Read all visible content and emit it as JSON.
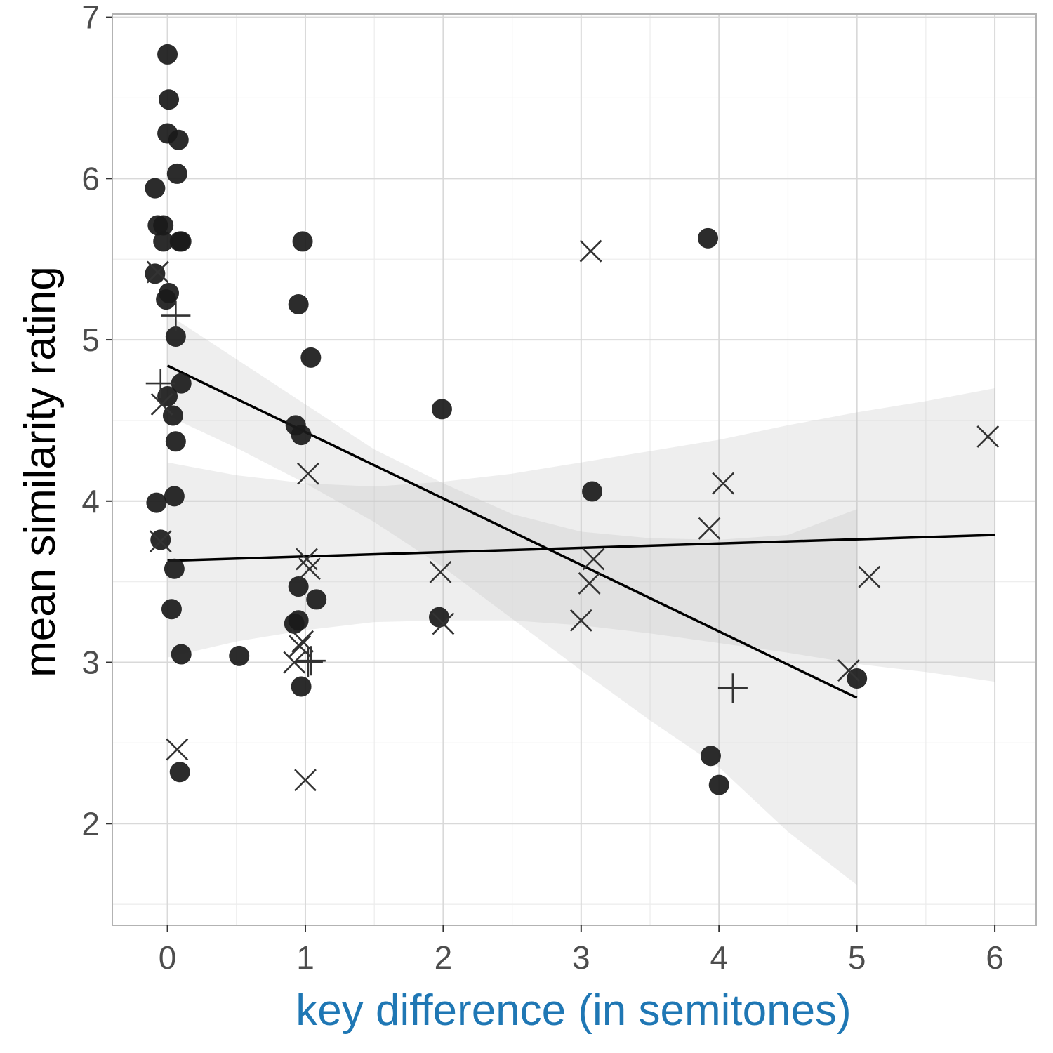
{
  "chart_data": {
    "type": "scatter",
    "xlabel": "key difference (in semitones)",
    "ylabel": "mean similarity rating",
    "xlim": [
      -0.4,
      6.3
    ],
    "ylim": [
      1.37,
      7.02
    ],
    "x_ticks": [
      0,
      1,
      2,
      3,
      4,
      5,
      6
    ],
    "x_tick_labels": [
      "0",
      "1",
      "2",
      "3",
      "4",
      "5",
      "6"
    ],
    "y_ticks": [
      2,
      3,
      4,
      5,
      6,
      7
    ],
    "y_tick_labels": [
      "2",
      "3",
      "4",
      "5",
      "6",
      "7"
    ],
    "grid": true,
    "colors": {
      "xlabel": "#1f77b4",
      "points": "#1a1a1a",
      "grid_major": "#d9d9d9",
      "grid_minor": "#ececec",
      "ribbon": "#bdbdbd",
      "panel_border": "#b3b3b3"
    },
    "series": [
      {
        "marker": "circle",
        "points": [
          [
            0.0,
            6.77
          ],
          [
            0.01,
            6.49
          ],
          [
            0.0,
            6.28
          ],
          [
            0.08,
            6.24
          ],
          [
            0.07,
            6.03
          ],
          [
            -0.09,
            5.94
          ],
          [
            -0.07,
            5.71
          ],
          [
            -0.03,
            5.71
          ],
          [
            -0.03,
            5.61
          ],
          [
            0.09,
            5.61
          ],
          [
            0.1,
            5.61
          ],
          [
            -0.09,
            5.41
          ],
          [
            0.01,
            5.29
          ],
          [
            -0.01,
            5.25
          ],
          [
            0.06,
            5.02
          ],
          [
            0.1,
            4.73
          ],
          [
            0.0,
            4.65
          ],
          [
            0.04,
            4.53
          ],
          [
            0.06,
            4.37
          ],
          [
            0.05,
            4.03
          ],
          [
            -0.08,
            3.99
          ],
          [
            -0.05,
            3.76
          ],
          [
            0.05,
            3.58
          ],
          [
            0.03,
            3.33
          ],
          [
            0.1,
            3.05
          ],
          [
            0.09,
            2.32
          ],
          [
            0.52,
            3.04
          ],
          [
            0.98,
            5.61
          ],
          [
            0.95,
            5.22
          ],
          [
            1.04,
            4.89
          ],
          [
            0.93,
            4.47
          ],
          [
            0.97,
            4.41
          ],
          [
            0.95,
            3.47
          ],
          [
            1.08,
            3.39
          ],
          [
            0.95,
            3.26
          ],
          [
            0.92,
            3.24
          ],
          [
            0.97,
            2.85
          ],
          [
            1.99,
            4.57
          ],
          [
            1.97,
            3.28
          ],
          [
            3.08,
            4.06
          ],
          [
            3.92,
            5.63
          ],
          [
            3.94,
            2.42
          ],
          [
            4.0,
            2.24
          ],
          [
            5.0,
            2.9
          ]
        ]
      },
      {
        "marker": "cross",
        "points": [
          [
            -0.07,
            5.42
          ],
          [
            -0.04,
            4.6
          ],
          [
            -0.05,
            3.75
          ],
          [
            0.07,
            2.46
          ],
          [
            1.02,
            4.17
          ],
          [
            1.01,
            3.64
          ],
          [
            1.03,
            3.58
          ],
          [
            0.98,
            3.13
          ],
          [
            0.96,
            3.1
          ],
          [
            0.92,
            3.0
          ],
          [
            1.0,
            2.27
          ],
          [
            1.98,
            3.56
          ],
          [
            2.0,
            3.24
          ],
          [
            3.07,
            5.55
          ],
          [
            3.09,
            3.64
          ],
          [
            3.06,
            3.49
          ],
          [
            3.0,
            3.26
          ],
          [
            4.03,
            4.11
          ],
          [
            3.93,
            3.83
          ],
          [
            4.94,
            2.95
          ],
          [
            5.09,
            3.53
          ],
          [
            5.95,
            4.4
          ]
        ]
      },
      {
        "marker": "plus",
        "points": [
          [
            0.06,
            5.15
          ],
          [
            -0.05,
            4.73
          ],
          [
            1.04,
            3.01
          ],
          [
            1.02,
            3.0
          ],
          [
            4.1,
            2.84
          ]
        ]
      }
    ],
    "fits": [
      {
        "x": [
          0,
          5
        ],
        "y": [
          4.84,
          2.78
        ],
        "band_x": [
          0,
          0.5,
          1,
          1.5,
          2,
          2.5,
          3,
          3.5,
          4,
          4.5,
          5
        ],
        "band_lower": [
          4.53,
          4.33,
          4.11,
          3.87,
          3.59,
          3.27,
          2.95,
          2.64,
          2.35,
          1.95,
          1.62
        ],
        "band_upper": [
          5.16,
          4.88,
          4.6,
          4.32,
          4.11,
          3.92,
          3.81,
          3.77,
          3.76,
          3.79,
          3.95
        ]
      },
      {
        "x": [
          0,
          6
        ],
        "y": [
          3.63,
          3.79
        ],
        "band_x": [
          0,
          0.5,
          1,
          1.5,
          2,
          2.5,
          3,
          3.5,
          4,
          4.5,
          5,
          5.5,
          6
        ],
        "band_lower": [
          3.03,
          3.13,
          3.2,
          3.25,
          3.26,
          3.26,
          3.23,
          3.18,
          3.12,
          3.06,
          2.99,
          2.94,
          2.88
        ],
        "band_upper": [
          4.24,
          4.16,
          4.11,
          4.09,
          4.12,
          4.17,
          4.24,
          4.31,
          4.38,
          4.47,
          4.55,
          4.62,
          4.7
        ]
      }
    ]
  }
}
